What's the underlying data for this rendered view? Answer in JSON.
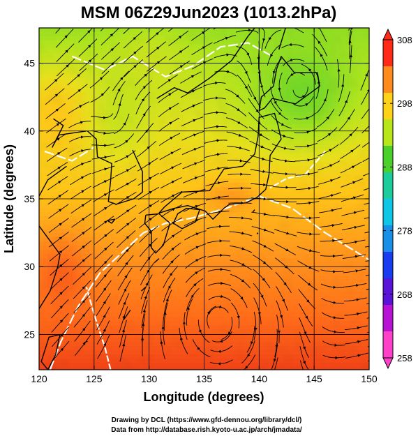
{
  "chart_data": {
    "type": "heatmap",
    "title": "MSM 06Z29Jun2023 (1013.2hPa)",
    "xlabel": "Longitude (degrees)",
    "ylabel": "Latitude  (degrees)",
    "xlim": [
      120,
      150
    ],
    "ylim": [
      22.4,
      47.6
    ],
    "xticks": [
      "120",
      "125",
      "130",
      "135",
      "140",
      "145",
      "150"
    ],
    "xtick_values": [
      120,
      125,
      130,
      135,
      140,
      145,
      150
    ],
    "yticks": [
      "25",
      "30",
      "35",
      "40",
      "45"
    ],
    "ytick_values": [
      25,
      30,
      35,
      40,
      45
    ],
    "grid": true,
    "overlays": [
      "temperature shading",
      "streamlines",
      "white contour lines",
      "coastlines"
    ],
    "colorbar": {
      "labels": [
        "308",
        "298",
        "288",
        "278",
        "268",
        "258"
      ],
      "values": [
        308,
        298,
        288,
        278,
        268,
        258
      ],
      "min": 258,
      "max": 308,
      "colors": [
        "#ff2a18",
        "#ff8a1e",
        "#ffd21a",
        "#b8e61a",
        "#49d02a",
        "#1ccc9a",
        "#10c6e6",
        "#1a8fe8",
        "#1a3cf0",
        "#5a14d8",
        "#b812d4",
        "#ff40c8"
      ]
    },
    "credits": [
      "Drawing by DCL (https://www.gfd-dennou.org/library/dcl/)",
      "Data from http://database.rish.kyoto-u.ac.jp/arch/jmadata/"
    ]
  }
}
